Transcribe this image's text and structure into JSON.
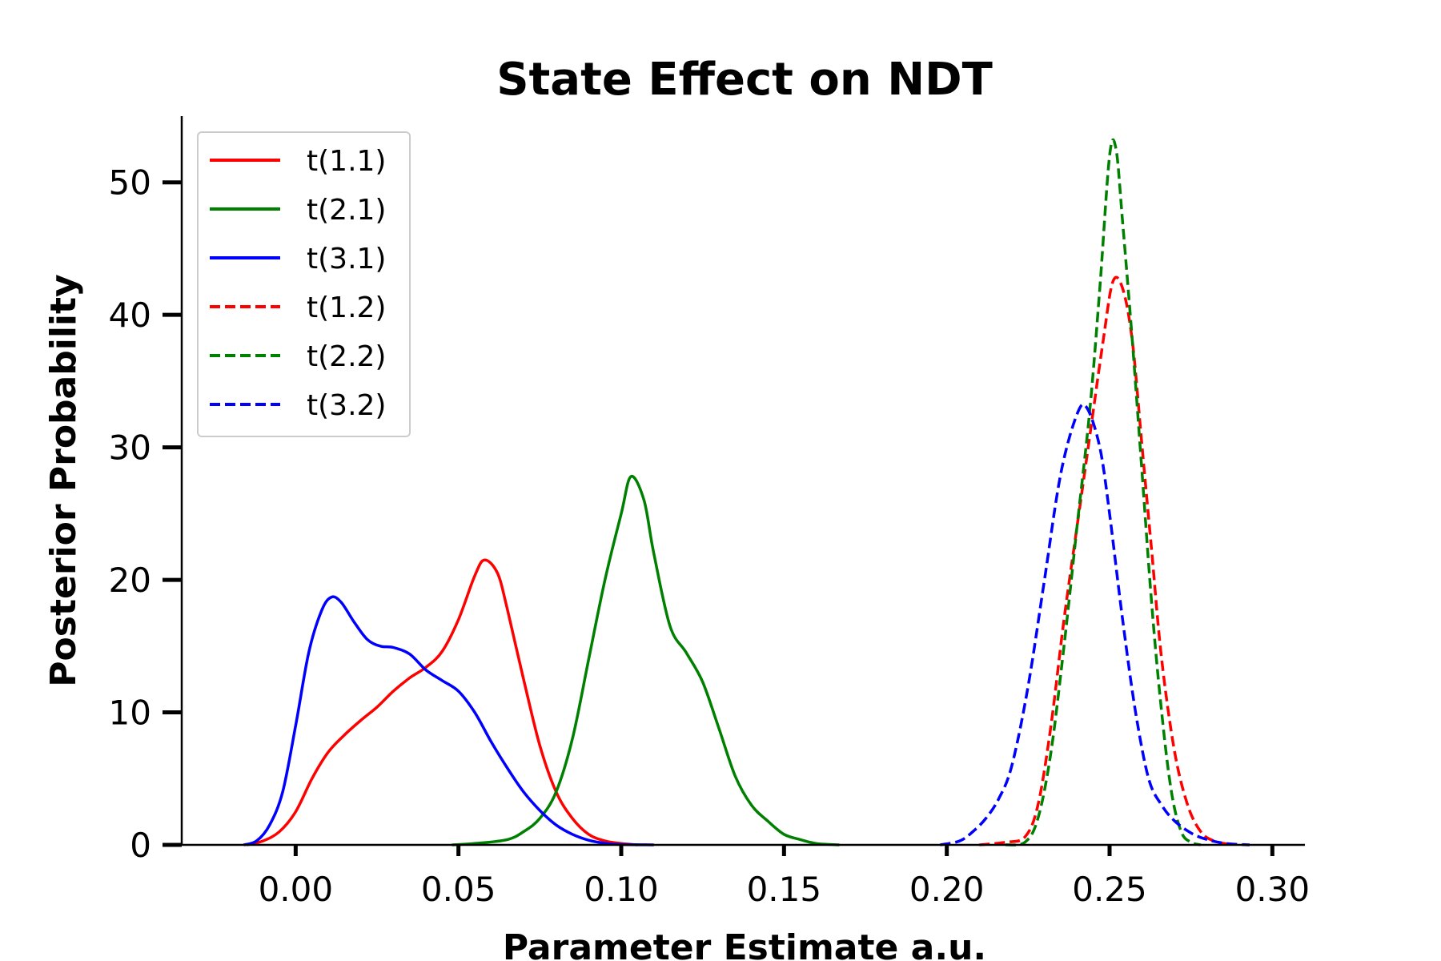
{
  "chart_data": {
    "type": "line",
    "title": "State Effect on NDT",
    "xlabel": "Parameter Estimate a.u.",
    "ylabel": "Posterior Probability",
    "xlim": [
      -0.035,
      0.31
    ],
    "ylim": [
      0,
      55
    ],
    "xticks": [
      0.0,
      0.05,
      0.1,
      0.15,
      0.2,
      0.25,
      0.3
    ],
    "xtick_labels": [
      "0.00",
      "0.05",
      "0.10",
      "0.15",
      "0.20",
      "0.25",
      "0.30"
    ],
    "yticks": [
      0,
      10,
      20,
      30,
      40,
      50
    ],
    "ytick_labels": [
      "0",
      "10",
      "20",
      "30",
      "40",
      "50"
    ],
    "grid": false,
    "legend_position": "top-left",
    "series": [
      {
        "name": "t(1.1)",
        "color": "#ff0000",
        "dash": "solid",
        "points": [
          [
            -0.015,
            0
          ],
          [
            -0.01,
            0.3
          ],
          [
            -0.005,
            1.0
          ],
          [
            0.0,
            2.5
          ],
          [
            0.005,
            5.0
          ],
          [
            0.01,
            7.0
          ],
          [
            0.015,
            8.3
          ],
          [
            0.02,
            9.4
          ],
          [
            0.025,
            10.4
          ],
          [
            0.03,
            11.6
          ],
          [
            0.035,
            12.6
          ],
          [
            0.04,
            13.4
          ],
          [
            0.045,
            14.6
          ],
          [
            0.05,
            17.0
          ],
          [
            0.055,
            20.3
          ],
          [
            0.058,
            21.5
          ],
          [
            0.062,
            20.5
          ],
          [
            0.065,
            17.8
          ],
          [
            0.07,
            12.5
          ],
          [
            0.075,
            7.5
          ],
          [
            0.08,
            4.0
          ],
          [
            0.085,
            2.0
          ],
          [
            0.09,
            0.8
          ],
          [
            0.095,
            0.3
          ],
          [
            0.1,
            0.1
          ],
          [
            0.105,
            0
          ]
        ]
      },
      {
        "name": "t(2.1)",
        "color": "#008000",
        "dash": "solid",
        "points": [
          [
            0.048,
            0
          ],
          [
            0.055,
            0.1
          ],
          [
            0.065,
            0.4
          ],
          [
            0.07,
            1.0
          ],
          [
            0.075,
            2.0
          ],
          [
            0.08,
            4.0
          ],
          [
            0.085,
            8.0
          ],
          [
            0.09,
            14.0
          ],
          [
            0.095,
            20.0
          ],
          [
            0.1,
            25.0
          ],
          [
            0.103,
            27.8
          ],
          [
            0.107,
            26.0
          ],
          [
            0.11,
            22.0
          ],
          [
            0.115,
            16.5
          ],
          [
            0.12,
            14.5
          ],
          [
            0.125,
            12.3
          ],
          [
            0.13,
            8.8
          ],
          [
            0.135,
            5.2
          ],
          [
            0.14,
            3.0
          ],
          [
            0.145,
            1.8
          ],
          [
            0.15,
            0.8
          ],
          [
            0.155,
            0.4
          ],
          [
            0.16,
            0.1
          ],
          [
            0.167,
            0
          ]
        ]
      },
      {
        "name": "t(3.1)",
        "color": "#0000ff",
        "dash": "solid",
        "points": [
          [
            -0.016,
            0
          ],
          [
            -0.012,
            0.3
          ],
          [
            -0.008,
            1.5
          ],
          [
            -0.004,
            4.0
          ],
          [
            0.0,
            9.0
          ],
          [
            0.004,
            14.5
          ],
          [
            0.008,
            17.7
          ],
          [
            0.011,
            18.7
          ],
          [
            0.014,
            18.3
          ],
          [
            0.018,
            16.8
          ],
          [
            0.022,
            15.5
          ],
          [
            0.026,
            15.0
          ],
          [
            0.03,
            14.9
          ],
          [
            0.035,
            14.4
          ],
          [
            0.04,
            13.2
          ],
          [
            0.045,
            12.4
          ],
          [
            0.05,
            11.6
          ],
          [
            0.055,
            10.0
          ],
          [
            0.06,
            7.8
          ],
          [
            0.065,
            5.8
          ],
          [
            0.07,
            4.0
          ],
          [
            0.075,
            2.6
          ],
          [
            0.08,
            1.5
          ],
          [
            0.085,
            0.8
          ],
          [
            0.09,
            0.35
          ],
          [
            0.095,
            0.12
          ],
          [
            0.1,
            0.03
          ],
          [
            0.11,
            0
          ]
        ]
      },
      {
        "name": "t(1.2)",
        "color": "#ff0000",
        "dash": "dashed",
        "points": [
          [
            0.21,
            0
          ],
          [
            0.218,
            0.2
          ],
          [
            0.224,
            0.6
          ],
          [
            0.228,
            3.0
          ],
          [
            0.232,
            9.0
          ],
          [
            0.236,
            17.0
          ],
          [
            0.24,
            24.0
          ],
          [
            0.244,
            31.0
          ],
          [
            0.248,
            38.0
          ],
          [
            0.251,
            42.5
          ],
          [
            0.254,
            42.0
          ],
          [
            0.257,
            38.0
          ],
          [
            0.26,
            30.0
          ],
          [
            0.263,
            22.0
          ],
          [
            0.266,
            14.0
          ],
          [
            0.27,
            7.0
          ],
          [
            0.274,
            3.0
          ],
          [
            0.278,
            1.0
          ],
          [
            0.282,
            0.3
          ],
          [
            0.288,
            0
          ]
        ]
      },
      {
        "name": "t(2.2)",
        "color": "#008000",
        "dash": "dashed",
        "points": [
          [
            0.218,
            0
          ],
          [
            0.224,
            0.2
          ],
          [
            0.228,
            2.0
          ],
          [
            0.232,
            7.0
          ],
          [
            0.236,
            15.0
          ],
          [
            0.24,
            24.0
          ],
          [
            0.244,
            33.0
          ],
          [
            0.247,
            42.0
          ],
          [
            0.25,
            52.0
          ],
          [
            0.252,
            52.5
          ],
          [
            0.254,
            47.0
          ],
          [
            0.257,
            38.0
          ],
          [
            0.26,
            28.0
          ],
          [
            0.263,
            18.0
          ],
          [
            0.266,
            10.0
          ],
          [
            0.269,
            4.0
          ],
          [
            0.272,
            1.0
          ],
          [
            0.275,
            0.2
          ],
          [
            0.278,
            0
          ]
        ]
      },
      {
        "name": "t(3.2)",
        "color": "#0000ff",
        "dash": "dashed",
        "points": [
          [
            0.198,
            0
          ],
          [
            0.204,
            0.3
          ],
          [
            0.208,
            1.0
          ],
          [
            0.212,
            2.0
          ],
          [
            0.216,
            3.5
          ],
          [
            0.22,
            6.0
          ],
          [
            0.225,
            12.0
          ],
          [
            0.23,
            20.0
          ],
          [
            0.235,
            28.0
          ],
          [
            0.24,
            32.5
          ],
          [
            0.243,
            33.0
          ],
          [
            0.247,
            30.0
          ],
          [
            0.25,
            25.0
          ],
          [
            0.254,
            17.0
          ],
          [
            0.258,
            10.0
          ],
          [
            0.262,
            5.0
          ],
          [
            0.266,
            3.0
          ],
          [
            0.27,
            1.8
          ],
          [
            0.275,
            0.9
          ],
          [
            0.28,
            0.4
          ],
          [
            0.286,
            0.1
          ],
          [
            0.293,
            0
          ]
        ]
      }
    ]
  }
}
